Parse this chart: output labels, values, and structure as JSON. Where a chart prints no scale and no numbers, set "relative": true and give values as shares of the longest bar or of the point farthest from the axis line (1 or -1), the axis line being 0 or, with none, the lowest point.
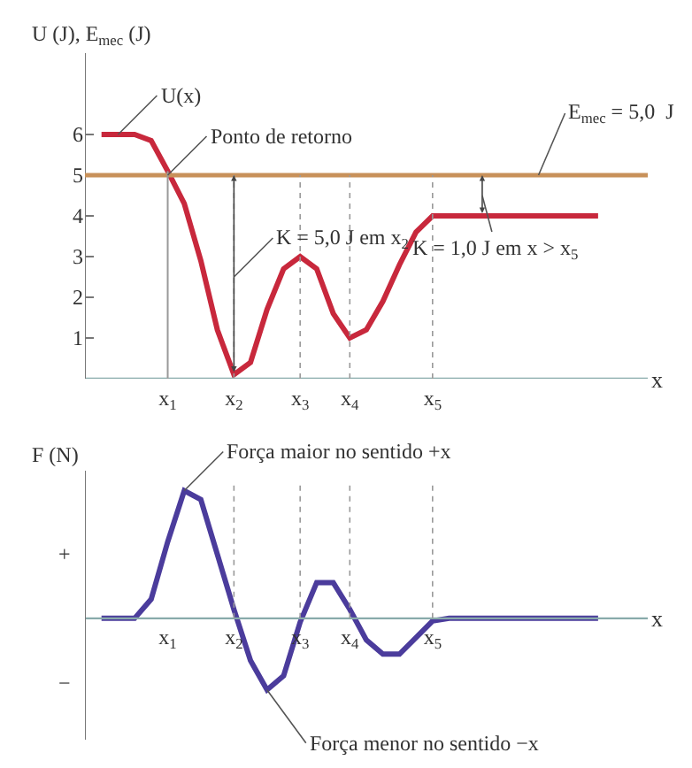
{
  "chart_data": [
    {
      "type": "line",
      "ylabel": "U (J), E$_{mec}$ (J)",
      "xlabel": "x",
      "ylim": [
        0,
        8
      ],
      "yticks": [
        1,
        2,
        3,
        4,
        5,
        6
      ],
      "categories": [
        null,
        null,
        null,
        null,
        "x$_{1}$",
        null,
        null,
        null,
        "x$_{2}$",
        null,
        null,
        null,
        "x$_{3}$",
        null,
        null,
        "x$_{4}$",
        null,
        null,
        null,
        null,
        "x$_{5}$",
        null,
        null,
        null,
        null,
        null,
        null,
        null,
        null,
        null,
        null
      ],
      "series": [
        {
          "name": "U(x)",
          "color": "#c8283c",
          "values": [
            6,
            6,
            6,
            5.85,
            5.1,
            4.3,
            2.9,
            1.2,
            0.1,
            0.4,
            1.7,
            2.7,
            3,
            2.7,
            1.6,
            1,
            1.2,
            1.9,
            2.8,
            3.6,
            4,
            4,
            4,
            4,
            4,
            4,
            4,
            4,
            4,
            4,
            4
          ]
        }
      ],
      "ref_lines": [
        {
          "axis": "y",
          "value": 5,
          "label": "E$_{mec}$ = 5,0  J",
          "color": "#c8915a",
          "line_style": "solid"
        },
        {
          "axis": "x",
          "value": "x$_{1}$",
          "line_style": "solid"
        },
        {
          "axis": "x",
          "value": "x$_{2}$",
          "line_style": "dotted"
        },
        {
          "axis": "x",
          "value": "x$_{3}$",
          "line_style": "dotted"
        },
        {
          "axis": "x",
          "value": "x$_{4}$",
          "line_style": "dotted"
        },
        {
          "axis": "x",
          "value": "x$_{5}$",
          "line_style": "dotted"
        }
      ],
      "annotations": [
        {
          "text": "Ponto de retorno",
          "x": "x$_{1}$",
          "y": 5
        },
        {
          "text": "K = 5,0 J em x$_{2}$",
          "x": "x$_{2}$",
          "y": 2.5
        },
        "K = 1,0 J em x > x$_{5}$"
      ]
    },
    {
      "type": "line",
      "ylabel": "F (N)",
      "xlabel": "x",
      "relative": true,
      "categories": [
        null,
        null,
        null,
        null,
        "x$_{1}$",
        null,
        null,
        null,
        "x$_{2}$",
        null,
        null,
        null,
        "x$_{3}$",
        null,
        null,
        "x$_{4}$",
        null,
        null,
        null,
        null,
        "x$_{5}$",
        null,
        null,
        null,
        null,
        null,
        null,
        null,
        null,
        null,
        null
      ],
      "series": [
        {
          "color": "#4b3c9c",
          "values": [
            0,
            0,
            0,
            0.15,
            0.6,
            1,
            0.93,
            0.5,
            0.07,
            -0.33,
            -0.56,
            -0.45,
            -0.03,
            0.28,
            0.28,
            0.07,
            -0.17,
            -0.28,
            -0.28,
            -0.15,
            -0.02,
            0,
            0,
            0,
            0,
            0,
            0,
            0,
            0,
            0,
            0
          ]
        }
      ],
      "ref_lines": [
        {
          "axis": "x",
          "value": "x$_{2}$",
          "line_style": "dotted"
        },
        {
          "axis": "x",
          "value": "x$_{3}$",
          "line_style": "dotted"
        },
        {
          "axis": "x",
          "value": "x$_{4}$",
          "line_style": "dotted"
        },
        {
          "axis": "x",
          "value": "x$_{5}$",
          "line_style": "dotted"
        }
      ],
      "annotations": [
        "Força maior no sentido +x",
        "Força menor no sentido −x",
        "+",
        "−"
      ]
    }
  ]
}
